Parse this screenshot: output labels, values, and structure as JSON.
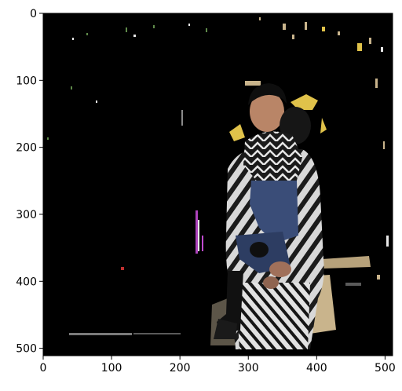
{
  "figure": {
    "background": "#ffffff",
    "image_background": "#000000",
    "frame_color": "#000000",
    "subject": "person in black-and-white patterned coat holding a child against a masked (black) background",
    "colors": {
      "coat_light": "#d8d8d8",
      "coat_dark": "#1b1b1b",
      "child_jeans": "#3a4d78",
      "skin": "#b98567",
      "hair": "#0e0e0e",
      "yellow_fringe": "#e0c24a",
      "sand": "#c9b48c",
      "noise_green": "#5f8a4a",
      "noise_white": "#e8e8e8",
      "noise_magenta": "#c04ad0",
      "noise_red": "#c03030"
    }
  },
  "axes": {
    "x_ticks": [
      {
        "value": 0,
        "label": "0"
      },
      {
        "value": 100,
        "label": "100"
      },
      {
        "value": 200,
        "label": "200"
      },
      {
        "value": 300,
        "label": "300"
      },
      {
        "value": 400,
        "label": "400"
      },
      {
        "value": 500,
        "label": "500"
      }
    ],
    "y_ticks": [
      {
        "value": 0,
        "label": "0"
      },
      {
        "value": 100,
        "label": "100"
      },
      {
        "value": 200,
        "label": "200"
      },
      {
        "value": 300,
        "label": "300"
      },
      {
        "value": 400,
        "label": "400"
      },
      {
        "value": 500,
        "label": "500"
      }
    ],
    "xlim": [
      0,
      511
    ],
    "ylim": [
      511,
      0
    ]
  }
}
